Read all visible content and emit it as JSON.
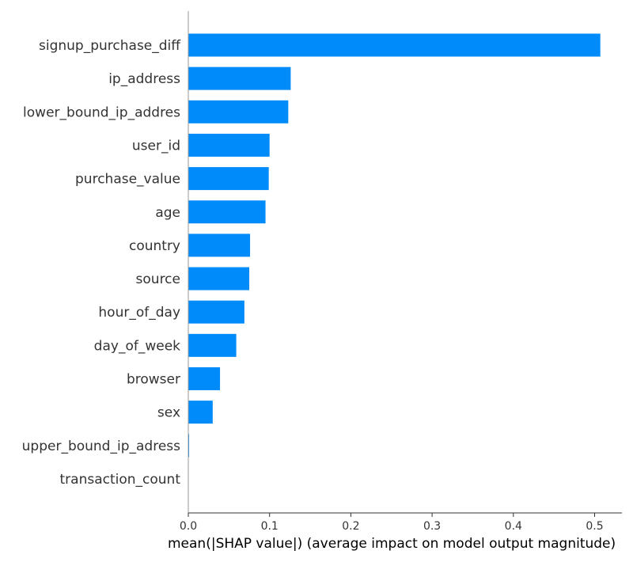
{
  "chart_data": {
    "type": "bar",
    "orientation": "horizontal",
    "title": "",
    "xlabel": "mean(|SHAP value|) (average impact on model output magnitude)",
    "ylabel": "",
    "xlim": [
      0,
      0.53
    ],
    "xticks": [
      0.0,
      0.1,
      0.2,
      0.3,
      0.4,
      0.5
    ],
    "xtick_labels": [
      "0.0",
      "0.1",
      "0.2",
      "0.3",
      "0.4",
      "0.5"
    ],
    "grid": false,
    "legend": "none",
    "bar_color": "#008bfb",
    "categories": [
      "signup_purchase_diff",
      "ip_address",
      "lower_bound_ip_addres",
      "user_id",
      "purchase_value",
      "age",
      "country",
      "source",
      "hour_of_day",
      "day_of_week",
      "browser",
      "sex",
      "upper_bound_ip_adress",
      "transaction_count"
    ],
    "values": [
      0.507,
      0.126,
      0.123,
      0.1,
      0.099,
      0.095,
      0.076,
      0.075,
      0.069,
      0.059,
      0.039,
      0.03,
      0.001,
      0.0
    ]
  }
}
